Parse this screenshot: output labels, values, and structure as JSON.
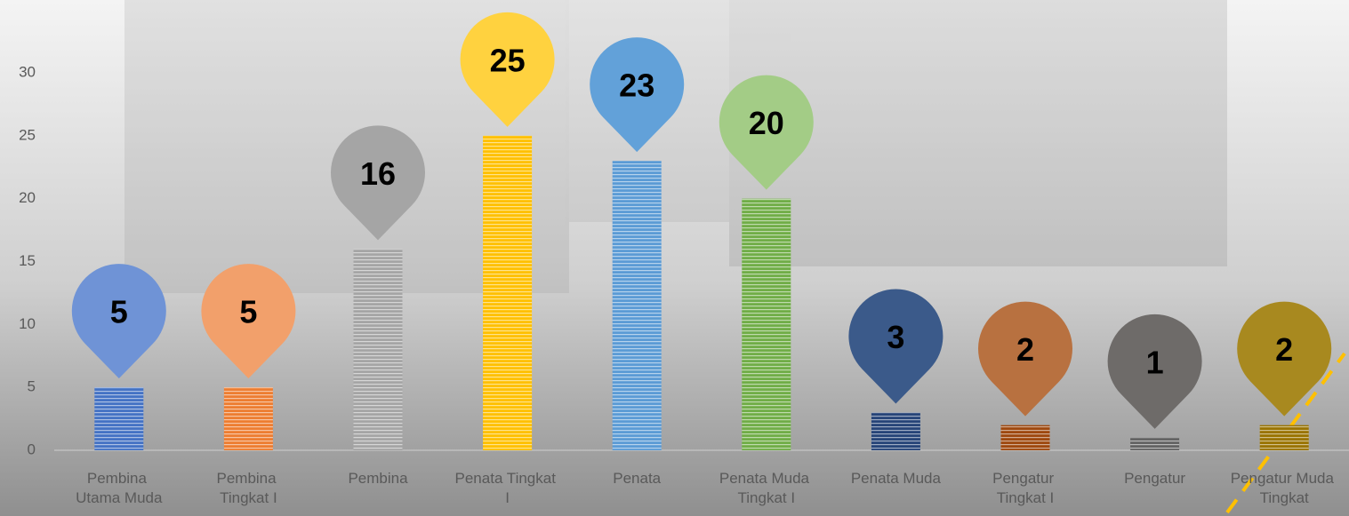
{
  "chart_data": {
    "type": "bar",
    "categories": [
      "Pembina Utama Muda",
      "Pembina Tingkat I",
      "Pembina",
      "Penata Tingkat I",
      "Penata",
      "Penata Muda Tingkat I",
      "Penata Muda",
      "Pengatur Tingkat I",
      "Pengatur",
      "Pengatur Muda Tingkat"
    ],
    "values": [
      5,
      5,
      16,
      25,
      23,
      20,
      3,
      2,
      1,
      2
    ],
    "colors": [
      "#4472c4",
      "#ed7d31",
      "#a5a5a5",
      "#ffc000",
      "#5b9bd5",
      "#70ad47",
      "#264478",
      "#9e480e",
      "#636363",
      "#997300"
    ],
    "pin_colors": [
      "#6f93d6",
      "#f2a06b",
      "#a5a5a5",
      "#ffd23f",
      "#62a1d9",
      "#a3cc86",
      "#3b5a8a",
      "#b87140",
      "#6e6b69",
      "#a8891f"
    ],
    "ylim": [
      0,
      30
    ],
    "yticks": [
      0,
      5,
      10,
      15,
      20,
      25,
      30
    ],
    "grid": false
  }
}
